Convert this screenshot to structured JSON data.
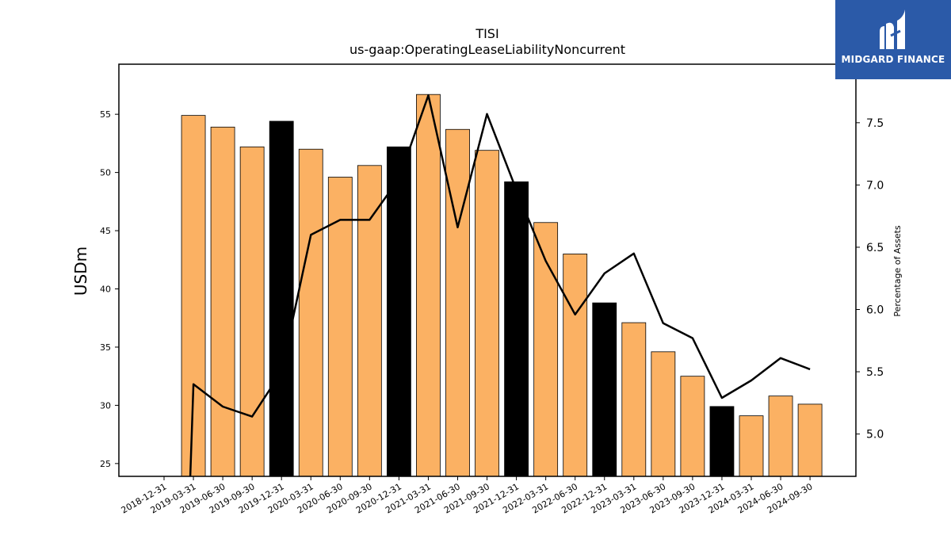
{
  "chart_data": {
    "type": "bar",
    "title": "TISI",
    "subtitle": "us-gaap:OperatingLeaseLiabilityNoncurrent",
    "ylabel": "USDm",
    "ylabel_right": "Percentage of Assets",
    "categories": [
      "2018-12-31",
      "2019-03-31",
      "2019-06-30",
      "2019-09-30",
      "2019-12-31",
      "2020-03-31",
      "2020-06-30",
      "2020-09-30",
      "2020-12-31",
      "2021-03-31",
      "2021-06-30",
      "2021-09-30",
      "2021-12-31",
      "2022-03-31",
      "2022-06-30",
      "2022-12-31",
      "2023-03-31",
      "2023-06-30",
      "2023-09-30",
      "2023-12-31",
      "2024-03-31",
      "2024-06-30",
      "2024-09-30"
    ],
    "series": [
      {
        "kind": "bar",
        "axis": "left",
        "values": [
          null,
          54.9,
          53.9,
          52.2,
          54.4,
          52.0,
          49.6,
          50.6,
          52.2,
          56.7,
          53.7,
          51.9,
          49.2,
          45.7,
          43.0,
          38.8,
          37.1,
          34.6,
          32.5,
          29.9,
          29.1,
          30.8,
          30.1
        ],
        "colors": [
          "#fbb163",
          "#fbb163",
          "#fbb163",
          "#fbb163",
          "#000000",
          "#fbb163",
          "#fbb163",
          "#fbb163",
          "#000000",
          "#fbb163",
          "#fbb163",
          "#fbb163",
          "#000000",
          "#fbb163",
          "#fbb163",
          "#000000",
          "#fbb163",
          "#fbb163",
          "#fbb163",
          "#000000",
          "#fbb163",
          "#fbb163",
          "#fbb163"
        ]
      },
      {
        "kind": "line",
        "axis": "right",
        "values": [
          null,
          5.4,
          5.22,
          5.14,
          5.5,
          6.6,
          6.72,
          6.72,
          7.05,
          7.72,
          6.66,
          7.57,
          6.96,
          6.39,
          5.96,
          6.29,
          6.45,
          5.89,
          5.77,
          5.29,
          5.43,
          5.61,
          5.52
        ],
        "color": "#000000"
      }
    ],
    "ylim": [
      23.9,
      59.3
    ],
    "ylim_right": [
      4.66,
      7.97
    ],
    "yticks": [
      25,
      30,
      35,
      40,
      45,
      50,
      55
    ],
    "yticks_right": [
      "5.0",
      "5.5",
      "6.0",
      "6.5",
      "7.0",
      "7.5"
    ],
    "grid": false
  },
  "logo": {
    "text": "MIDGARD FINANCE",
    "background": "#2b5aa8"
  }
}
